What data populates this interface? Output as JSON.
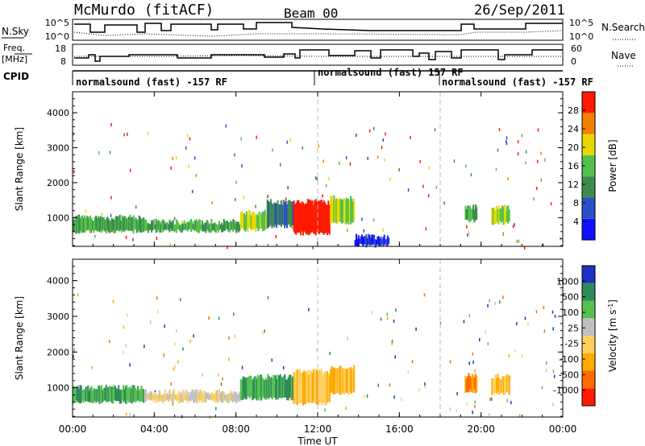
{
  "header": {
    "title": "McMurdo (fitACF)",
    "beam": "Beam 00",
    "date": "26/Sep/2011"
  },
  "summary_panels": {
    "nsky": {
      "label": "N.Sky",
      "ticks": [
        "10^5",
        "10^0"
      ],
      "right_ticks": [
        "10^5",
        "10^0"
      ],
      "right_label": "N.Search"
    },
    "freq": {
      "label_line1": "Freq.",
      "label_line2": "[MHz]",
      "ticks": [
        "18",
        "8"
      ],
      "right_ticks": [
        "60",
        "0"
      ],
      "right_label": "Nave"
    },
    "cpid": {
      "label": "CPID",
      "segments": [
        "normalsound (fast) -157 RF",
        "normalsound (fast) 157 RF",
        "normalsound (fast) -157 RF"
      ]
    }
  },
  "chart_data": [
    {
      "type": "heatmap",
      "title": "",
      "xlabel": "Time UT",
      "ylabel": "Slant Range [km]",
      "xticks": [
        "00:00",
        "04:00",
        "08:00",
        "12:00",
        "16:00",
        "20:00",
        "00:00"
      ],
      "xlim_hours": [
        0,
        24
      ],
      "yticks": [
        "1000",
        "2000",
        "3000",
        "4000"
      ],
      "ylim": [
        180,
        4600
      ],
      "colorbar_label": "Power [dB]",
      "colorbar_ticks": [
        "28",
        "24",
        "20",
        "16",
        "12",
        "8",
        "4"
      ],
      "colorbar_colors": [
        "#1010ff",
        "#2a4fc8",
        "#3d8c4c",
        "#54c04c",
        "#e8d800",
        "#f28000",
        "#ff1a00"
      ],
      "dashed_lines_hours": [
        12,
        18
      ],
      "echo_regions": [
        {
          "t": [
            0.0,
            3.5
          ],
          "r": [
            600,
            1000
          ],
          "value": 12
        },
        {
          "t": [
            3.5,
            8.2
          ],
          "r": [
            620,
            880
          ],
          "value": 12
        },
        {
          "t": [
            8.2,
            9.5
          ],
          "r": [
            650,
            1150
          ],
          "value": 16
        },
        {
          "t": [
            9.5,
            10.8
          ],
          "r": [
            750,
            1450
          ],
          "value": 8
        },
        {
          "t": [
            10.8,
            12.6
          ],
          "r": [
            550,
            1450
          ],
          "value": 28
        },
        {
          "t": [
            12.6,
            13.8
          ],
          "r": [
            850,
            1550
          ],
          "value": 16
        },
        {
          "t": [
            13.8,
            15.5
          ],
          "r": [
            200,
            450
          ],
          "value": 4
        },
        {
          "t": [
            19.2,
            19.8
          ],
          "r": [
            900,
            1300
          ],
          "value": 12
        },
        {
          "t": [
            20.5,
            21.4
          ],
          "r": [
            850,
            1300
          ],
          "value": 16
        }
      ]
    },
    {
      "type": "heatmap",
      "title": "",
      "xlabel": "Time UT",
      "ylabel": "Slant Range [km]",
      "xticks": [
        "00:00",
        "04:00",
        "08:00",
        "12:00",
        "16:00",
        "20:00",
        "00:00"
      ],
      "xlim_hours": [
        0,
        24
      ],
      "yticks": [
        "1000",
        "2000",
        "3000",
        "4000"
      ],
      "ylim": [
        180,
        4600
      ],
      "colorbar_label": "Velocity [m s-1]",
      "colorbar_label_main": "Velocity",
      "colorbar_label_unit": "[m s",
      "colorbar_label_sup": "-1",
      "colorbar_label_end": "]",
      "colorbar_ticks": [
        "1000",
        "500",
        "100",
        "25",
        "-25",
        "-100",
        "-500",
        "-1000"
      ],
      "colorbar_colors": [
        "#ff1a00",
        "#ff6a00",
        "#ffaa00",
        "#ffd060",
        "#c0c0c0",
        "#56c050",
        "#2f8a5a",
        "#2030c0"
      ],
      "dashed_lines_hours": [
        12,
        18
      ],
      "echo_regions": [
        {
          "t": [
            0.0,
            3.5
          ],
          "r": [
            600,
            1000
          ],
          "value": 100
        },
        {
          "t": [
            3.5,
            8.2
          ],
          "r": [
            620,
            880
          ],
          "value": -25
        },
        {
          "t": [
            8.2,
            10.8
          ],
          "r": [
            700,
            1300
          ],
          "value": 100
        },
        {
          "t": [
            10.8,
            12.6
          ],
          "r": [
            550,
            1450
          ],
          "value": -100
        },
        {
          "t": [
            12.6,
            13.8
          ],
          "r": [
            850,
            1550
          ],
          "value": -100
        },
        {
          "t": [
            19.2,
            19.8
          ],
          "r": [
            900,
            1350
          ],
          "value": -500
        },
        {
          "t": [
            20.5,
            21.4
          ],
          "r": [
            850,
            1300
          ],
          "value": -100
        }
      ]
    }
  ]
}
